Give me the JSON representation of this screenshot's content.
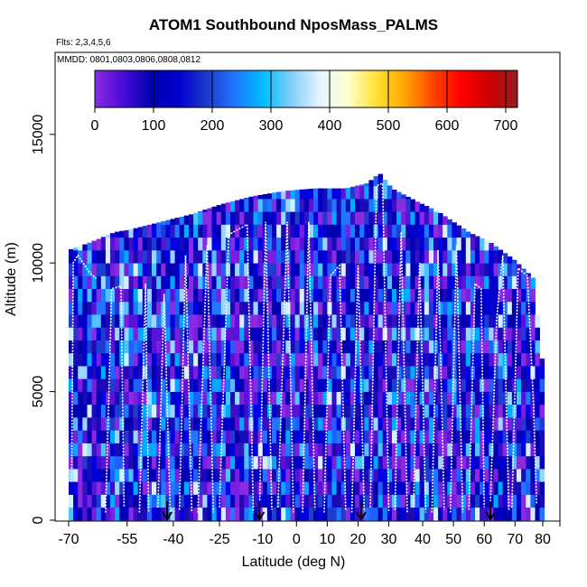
{
  "chart_data": {
    "type": "heatmap",
    "title": "ATOM1 Southbound NposMass_PALMS",
    "subtitle_flights": "Flts: 2,3,4,5,6",
    "subtitle_dates": "MMDD: 0801,0803,0806,0808,0812",
    "xlabel": "Latitude (deg N)",
    "ylabel": "Altitude (m)",
    "xlim": [
      -70,
      80
    ],
    "ylim": [
      0,
      17500
    ],
    "x_ticks": [
      -70,
      -55,
      -40,
      -25,
      -10,
      0,
      10,
      20,
      30,
      40,
      50,
      60,
      70,
      80
    ],
    "x_tick_labels": [
      "-70",
      "-55",
      "-40",
      "-25",
      "-10",
      "0",
      "10",
      "20",
      "30",
      "40",
      "50",
      "60",
      "70",
      "80"
    ],
    "x_tick_positions_deg": [
      -75,
      -56,
      -41,
      -26,
      -12,
      -1,
      9,
      19,
      29,
      40,
      50,
      60,
      70,
      79
    ],
    "y_ticks": [
      0,
      5000,
      10000,
      15000
    ],
    "y_tick_labels": [
      "0",
      "5000",
      "10000",
      "15000"
    ],
    "colorbar": {
      "range": [
        0,
        720
      ],
      "ticks": [
        0,
        100,
        200,
        300,
        400,
        500,
        600,
        700
      ],
      "tick_labels": [
        "0",
        "100",
        "200",
        "300",
        "400",
        "500",
        "600",
        "700"
      ],
      "colors": [
        "#8a2be2",
        "#4b0bd9",
        "#0000b0",
        "#0000cd",
        "#1e3ccf",
        "#1f78ff",
        "#00bfff",
        "#87cefa",
        "#e6f4ff",
        "#ffffcc",
        "#ffe033",
        "#ffa500",
        "#ff4500",
        "#ff0000",
        "#cd0000",
        "#9b1c1c"
      ]
    },
    "coverage": {
      "description": "altitude-latitude curtain of binned values",
      "lat_range": [
        -70,
        80
      ],
      "max_alt_m": 13500
    },
    "arrow_markers_lat": [
      -43,
      -13,
      20,
      62
    ],
    "grid": false,
    "legend": "colorbar-top"
  }
}
